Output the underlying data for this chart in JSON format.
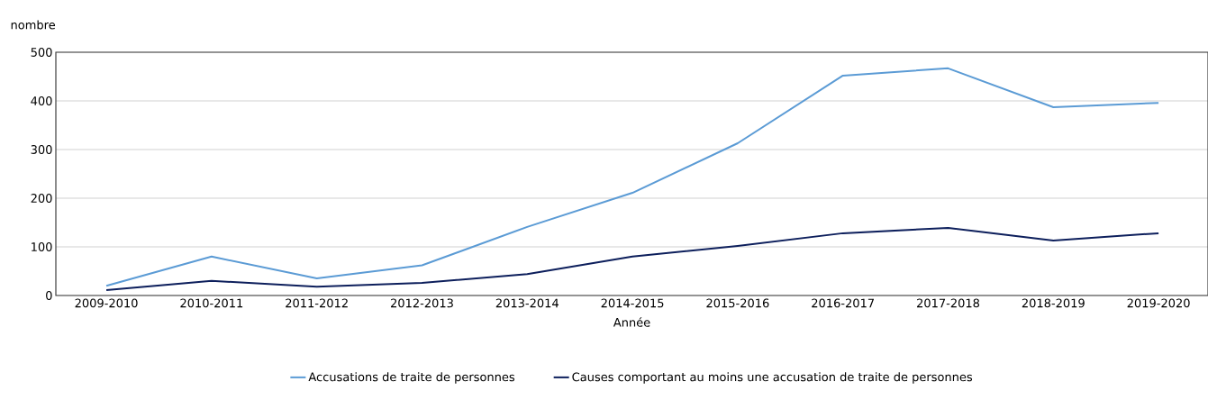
{
  "chart_data": {
    "type": "line",
    "xlabel": "Année",
    "ylabel": "nombre",
    "categories": [
      "2009-2010",
      "2010-2011",
      "2011-2012",
      "2012-2013",
      "2013-2014",
      "2014-2015",
      "2015-2016",
      "2016-2017",
      "2017-2018",
      "2018-2019",
      "2019-2020"
    ],
    "series": [
      {
        "name": "Accusations de traite de personnes",
        "color": "#5b9bd5",
        "values": [
          20,
          80,
          35,
          62,
          141,
          211,
          313,
          452,
          467,
          387,
          396
        ]
      },
      {
        "name": "Causes comportant au moins une accusation de traite de personnes",
        "color": "#0d1f5c",
        "values": [
          11,
          30,
          18,
          26,
          44,
          80,
          102,
          128,
          139,
          113,
          128
        ]
      }
    ],
    "ylim": [
      0,
      500
    ],
    "yticks": [
      0,
      100,
      200,
      300,
      400,
      500
    ],
    "grid": "y",
    "legend": "bottom",
    "marker": "none",
    "line_style": "solid"
  }
}
